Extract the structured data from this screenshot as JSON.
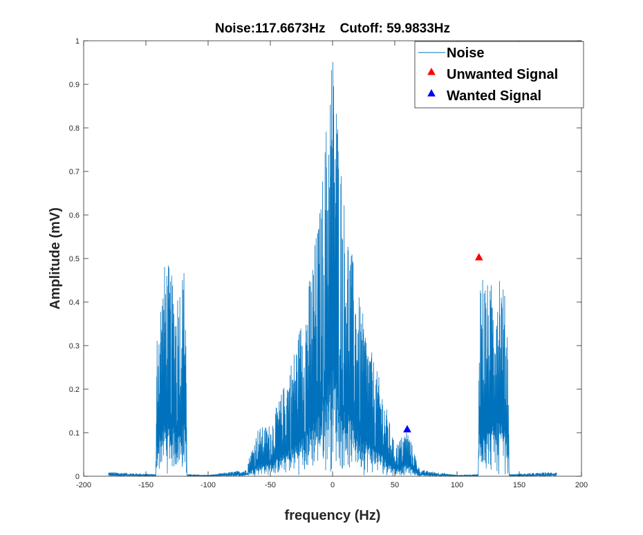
{
  "chart_data": {
    "type": "line",
    "title": "Noise:117.6673Hz    Cutoff: 59.9833Hz",
    "xlabel": "frequency (Hz)",
    "ylabel": "Amplitude (mV)",
    "xlim": [
      -200,
      200
    ],
    "ylim": [
      0,
      1
    ],
    "x_ticks": [
      "-200",
      "-150",
      "-100",
      "-50",
      "0",
      "50",
      "100",
      "150",
      "200"
    ],
    "y_ticks": [
      "0",
      "0.1",
      "0.2",
      "0.3",
      "0.4",
      "0.5",
      "0.6",
      "0.7",
      "0.8",
      "0.9",
      "1"
    ],
    "grid": false,
    "legend_position": "top-right",
    "legend": [
      "Noise",
      "Unwanted Signal",
      "Wanted Signal"
    ],
    "colors": {
      "noise": "#0072BD",
      "unwanted": "#FF0000",
      "wanted": "#0000FF",
      "axis": "#262626"
    },
    "series": [
      {
        "name": "Noise",
        "kind": "spectrum",
        "x_range": [
          -180,
          180
        ],
        "envelope": [
          {
            "x": -180,
            "y": 0.01
          },
          {
            "x": -142,
            "y": 0.005
          },
          {
            "x": -141,
            "y": 0.36
          },
          {
            "x": -134,
            "y": 0.51
          },
          {
            "x": -126,
            "y": 0.43
          },
          {
            "x": -118,
            "y": 0.5
          },
          {
            "x": -117,
            "y": 0.005
          },
          {
            "x": -100,
            "y": 0.003
          },
          {
            "x": -70,
            "y": 0.015
          },
          {
            "x": -60,
            "y": 0.11
          },
          {
            "x": -50,
            "y": 0.12
          },
          {
            "x": -40,
            "y": 0.2
          },
          {
            "x": -30,
            "y": 0.3
          },
          {
            "x": -20,
            "y": 0.43
          },
          {
            "x": -10,
            "y": 0.62
          },
          {
            "x": -5,
            "y": 0.82
          },
          {
            "x": -1,
            "y": 1.0
          },
          {
            "x": 0,
            "y": 0.99
          },
          {
            "x": 1,
            "y": 1.0
          },
          {
            "x": 5,
            "y": 0.8
          },
          {
            "x": 10,
            "y": 0.62
          },
          {
            "x": 20,
            "y": 0.43
          },
          {
            "x": 30,
            "y": 0.3
          },
          {
            "x": 40,
            "y": 0.2
          },
          {
            "x": 50,
            "y": 0.07
          },
          {
            "x": 60,
            "y": 0.11
          },
          {
            "x": 70,
            "y": 0.015
          },
          {
            "x": 100,
            "y": 0.003
          },
          {
            "x": 117,
            "y": 0.005
          },
          {
            "x": 118,
            "y": 0.5
          },
          {
            "x": 126,
            "y": 0.43
          },
          {
            "x": 134,
            "y": 0.51
          },
          {
            "x": 141,
            "y": 0.36
          },
          {
            "x": 142,
            "y": 0.005
          },
          {
            "x": 180,
            "y": 0.01
          }
        ]
      },
      {
        "name": "Unwanted Signal",
        "kind": "marker",
        "marker": "triangle",
        "points": [
          {
            "x": 117.6673,
            "y": 0.503
          }
        ]
      },
      {
        "name": "Wanted Signal",
        "kind": "marker",
        "marker": "triangle",
        "points": [
          {
            "x": 59.9833,
            "y": 0.108
          }
        ]
      }
    ]
  }
}
